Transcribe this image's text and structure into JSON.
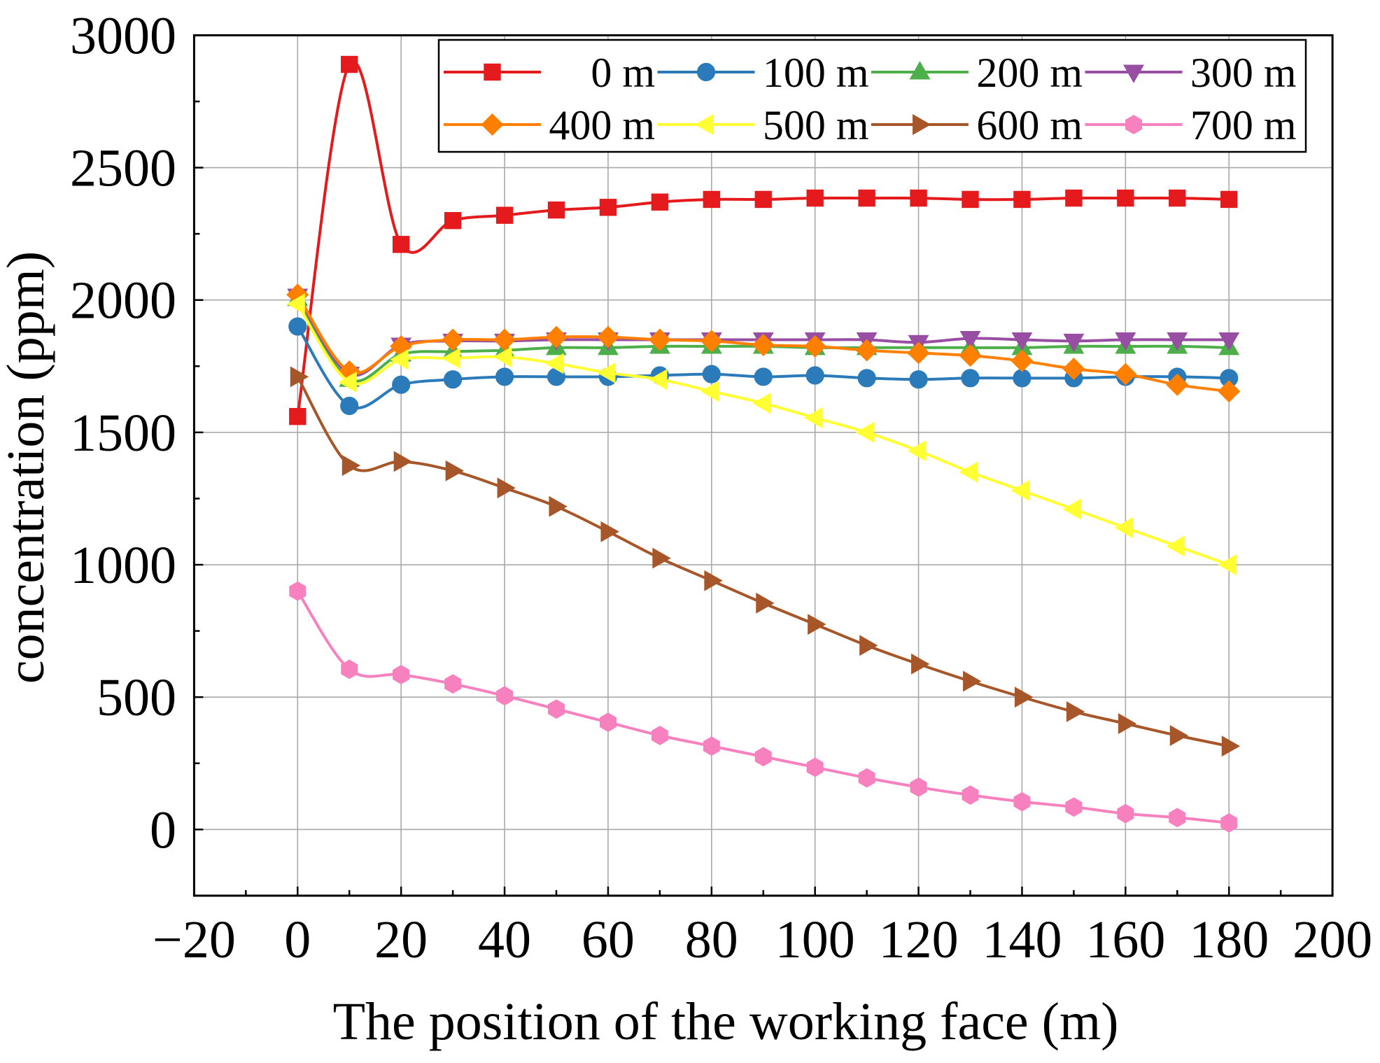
{
  "chart_data": {
    "type": "line",
    "title": "",
    "xlabel": "The position of the working face (m)",
    "ylabel": "concentration (ppm)",
    "xlim": [
      -20,
      200
    ],
    "ylim": [
      -250,
      3000
    ],
    "xticks": [
      -20,
      0,
      20,
      40,
      60,
      80,
      100,
      120,
      140,
      160,
      180,
      200
    ],
    "xtick_labels": [
      "−20",
      "0",
      "20",
      "40",
      "60",
      "80",
      "100",
      "120",
      "140",
      "160",
      "180",
      "200"
    ],
    "yticks": [
      0,
      500,
      1000,
      1500,
      2000,
      2500,
      3000
    ],
    "ytick_labels": [
      "0",
      "500",
      "1000",
      "1500",
      "2000",
      "2500",
      "3000"
    ],
    "grid": true,
    "legend_position": "top-right",
    "x": [
      0,
      10,
      20,
      30,
      40,
      50,
      60,
      70,
      80,
      90,
      100,
      110,
      120,
      130,
      140,
      150,
      160,
      170,
      180
    ],
    "series": [
      {
        "name": "0 m",
        "color": "#e41a1c",
        "marker": "square",
        "values": [
          1560,
          2890,
          2210,
          2300,
          2320,
          2340,
          2350,
          2370,
          2380,
          2380,
          2385,
          2385,
          2385,
          2380,
          2380,
          2385,
          2385,
          2385,
          2380
        ]
      },
      {
        "name": "100 m",
        "color": "#2b7bba",
        "marker": "circle",
        "values": [
          1900,
          1600,
          1680,
          1700,
          1710,
          1710,
          1710,
          1715,
          1720,
          1710,
          1715,
          1705,
          1700,
          1705,
          1705,
          1705,
          1710,
          1710,
          1705
        ]
      },
      {
        "name": "200 m",
        "color": "#4daf4a",
        "marker": "triangle-up",
        "values": [
          2005,
          1700,
          1795,
          1805,
          1810,
          1820,
          1820,
          1825,
          1825,
          1825,
          1820,
          1820,
          1820,
          1820,
          1820,
          1825,
          1825,
          1825,
          1820
        ]
      },
      {
        "name": "300 m",
        "color": "#984ea3",
        "marker": "triangle-down",
        "values": [
          2015,
          1720,
          1830,
          1845,
          1845,
          1850,
          1850,
          1850,
          1850,
          1850,
          1850,
          1850,
          1840,
          1855,
          1850,
          1845,
          1850,
          1850,
          1850
        ]
      },
      {
        "name": "400 m",
        "color": "#ff7f00",
        "marker": "diamond",
        "values": [
          2020,
          1730,
          1825,
          1850,
          1850,
          1860,
          1860,
          1850,
          1845,
          1830,
          1825,
          1810,
          1800,
          1790,
          1770,
          1740,
          1720,
          1680,
          1655
        ]
      },
      {
        "name": "500 m",
        "color": "#ffff33",
        "marker": "triangle-left",
        "values": [
          1985,
          1690,
          1775,
          1780,
          1785,
          1760,
          1725,
          1700,
          1655,
          1610,
          1555,
          1500,
          1430,
          1350,
          1280,
          1210,
          1140,
          1070,
          1000
        ]
      },
      {
        "name": "600 m",
        "color": "#a65628",
        "marker": "triangle-right",
        "values": [
          1710,
          1375,
          1390,
          1355,
          1290,
          1220,
          1125,
          1025,
          940,
          855,
          775,
          695,
          625,
          560,
          500,
          445,
          400,
          355,
          315
        ]
      },
      {
        "name": "700 m",
        "color": "#f781bf",
        "marker": "hexagon",
        "values": [
          900,
          605,
          585,
          550,
          505,
          455,
          405,
          355,
          315,
          275,
          235,
          195,
          160,
          130,
          105,
          85,
          60,
          45,
          25
        ]
      }
    ]
  }
}
